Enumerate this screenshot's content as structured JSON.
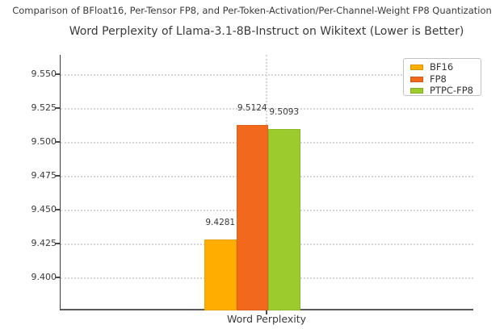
{
  "figure_title": "Comparison of BFloat16, Per-Tensor FP8, and Per-Token-Activation/Per-Channel-Weight FP8 Quantization",
  "chart_data": {
    "type": "bar",
    "title": "Word Perplexity of Llama-3.1-8B-Instruct on Wikitext (Lower is Better)",
    "categories": [
      "Word Perplexity"
    ],
    "series": [
      {
        "name": "BF16",
        "values": [
          9.4281
        ],
        "value_labels": [
          "9.4281"
        ],
        "color": "#FFAE00"
      },
      {
        "name": "FP8",
        "values": [
          9.5124
        ],
        "value_labels": [
          "9.5124"
        ],
        "color": "#F2691E"
      },
      {
        "name": "PTPC-FP8",
        "values": [
          9.5093
        ],
        "value_labels": [
          "9.5093"
        ],
        "color": "#9CCB2D"
      }
    ],
    "xlabel": "",
    "ylabel": "",
    "ylim": [
      9.3756,
      9.5643
    ],
    "yticks": [
      {
        "value": 9.4,
        "label": "9.400"
      },
      {
        "value": 9.425,
        "label": "9.425"
      },
      {
        "value": 9.45,
        "label": "9.450"
      },
      {
        "value": 9.475,
        "label": "9.475"
      },
      {
        "value": 9.5,
        "label": "9.500"
      },
      {
        "value": 9.525,
        "label": "9.525"
      },
      {
        "value": 9.55,
        "label": "9.550"
      }
    ],
    "grid": "dotted, horizontal lines at yticks plus one vertical line at category center",
    "legend_position": "upper right",
    "colors": {
      "grid": "#d6d6d6",
      "spine": "#3c3c3c",
      "text": "#3a3a3a",
      "background": "#ffffff"
    }
  }
}
